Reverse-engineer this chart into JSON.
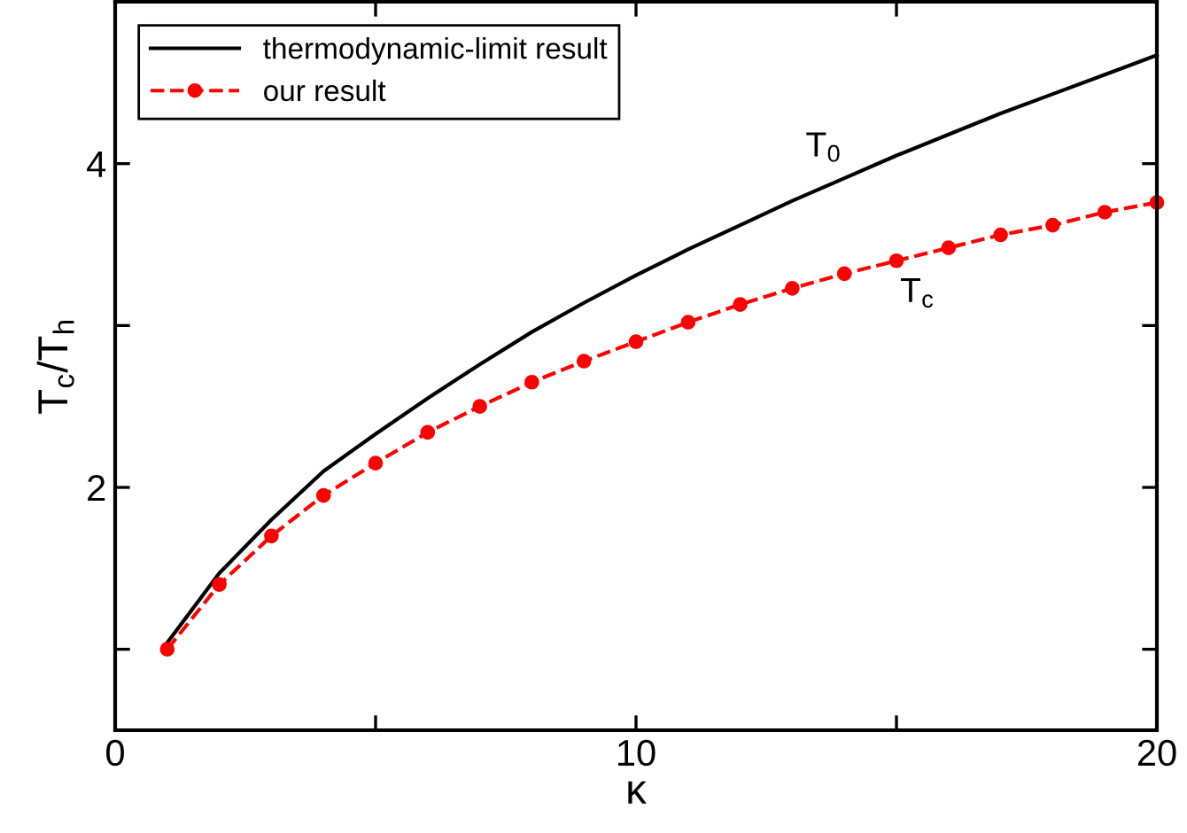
{
  "chart_data": {
    "type": "line",
    "xlabel": "κ",
    "ylabel": "T$_{c}$/T$_{h}$",
    "xlim": [
      0,
      20
    ],
    "xticks": [
      0,
      {
        "value": 5,
        "label": null
      },
      10,
      {
        "value": 15,
        "label": null
      },
      20
    ],
    "ylim": [
      0.5,
      5.0
    ],
    "yticks": [
      {
        "value": 1,
        "label": null
      },
      2,
      {
        "value": 3,
        "label": null
      },
      4
    ],
    "grid": false,
    "legend": "top left",
    "series": [
      {
        "name": "thermodynamic-limit result",
        "color": "#000000",
        "line_style": "solid",
        "marker": "none",
        "x": [
          1,
          2,
          3,
          4,
          5,
          6,
          7,
          8,
          9,
          10,
          11,
          12,
          13,
          14,
          15,
          16,
          17,
          18,
          19,
          20
        ],
        "values": [
          1.04,
          1.47,
          1.8,
          2.1,
          2.33,
          2.55,
          2.76,
          2.96,
          3.14,
          3.31,
          3.47,
          3.62,
          3.77,
          3.91,
          4.05,
          4.18,
          4.31,
          4.43,
          4.55,
          4.67
        ]
      },
      {
        "name": "our result",
        "color": "#ff0000",
        "line_style": "dashed",
        "marker": "circle",
        "x": [
          1,
          2,
          3,
          4,
          5,
          6,
          7,
          8,
          9,
          10,
          11,
          12,
          13,
          14,
          15,
          16,
          17,
          18,
          19,
          20
        ],
        "values": [
          1.0,
          1.4,
          1.7,
          1.95,
          2.15,
          2.34,
          2.5,
          2.65,
          2.78,
          2.9,
          3.02,
          3.13,
          3.23,
          3.32,
          3.4,
          3.48,
          3.56,
          3.62,
          3.7,
          3.76
        ]
      }
    ],
    "annotations": [
      "T$_{0}$",
      "T$_{c}$"
    ]
  }
}
